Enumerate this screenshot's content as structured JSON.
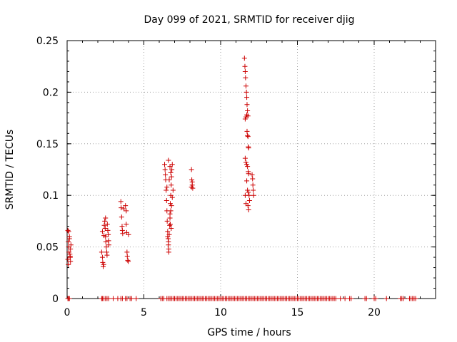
{
  "chart_data": {
    "type": "scatter",
    "title": "Day 099 of 2021, SRMTID for receiver djig",
    "xlabel": "GPS time / hours",
    "ylabel": "SRMTID / TECUs",
    "xlim": [
      0,
      24
    ],
    "ylim": [
      0,
      0.25
    ],
    "xticks": [
      0,
      5,
      10,
      15,
      20
    ],
    "yticks": [
      0,
      0.05,
      0.1,
      0.15,
      0.2,
      0.25
    ],
    "xtick_labels": [
      "0",
      "5",
      "10",
      "15",
      "20"
    ],
    "ytick_labels": [
      "0",
      "0.05",
      "0.1",
      "0.15",
      "0.2",
      "0.25"
    ],
    "grid": true,
    "marker": "+",
    "marker_color": "#cc0000",
    "series": [
      {
        "points": [
          [
            0.05,
            0.066
          ],
          [
            0.08,
            0.055
          ],
          [
            0.1,
            0.05
          ],
          [
            0.12,
            0.045
          ],
          [
            0.05,
            0.038
          ],
          [
            0.08,
            0.033
          ],
          [
            0.15,
            0.06
          ],
          [
            0.18,
            0.043
          ],
          [
            0.2,
            0.041
          ],
          [
            0.22,
            0.048
          ],
          [
            0.25,
            0.052
          ],
          [
            0.1,
            0.065
          ],
          [
            0.15,
            0.058
          ],
          [
            0.2,
            0.04
          ],
          [
            0.22,
            0.036
          ],
          [
            2.25,
            0.045
          ],
          [
            2.3,
            0.04
          ],
          [
            2.32,
            0.035
          ],
          [
            2.35,
            0.031
          ],
          [
            2.38,
            0.033
          ],
          [
            2.4,
            0.061
          ],
          [
            2.42,
            0.071
          ],
          [
            2.45,
            0.075
          ],
          [
            2.48,
            0.068
          ],
          [
            2.5,
            0.06
          ],
          [
            2.52,
            0.055
          ],
          [
            2.55,
            0.05
          ],
          [
            2.58,
            0.045
          ],
          [
            2.6,
            0.042
          ],
          [
            2.62,
            0.072
          ],
          [
            2.65,
            0.066
          ],
          [
            2.68,
            0.062
          ],
          [
            2.7,
            0.056
          ],
          [
            2.72,
            0.052
          ],
          [
            2.3,
            0.065
          ],
          [
            2.5,
            0.078
          ],
          [
            3.5,
            0.094
          ],
          [
            3.52,
            0.088
          ],
          [
            3.55,
            0.079
          ],
          [
            3.58,
            0.07
          ],
          [
            3.6,
            0.066
          ],
          [
            3.62,
            0.063
          ],
          [
            3.7,
            0.087
          ],
          [
            3.8,
            0.09
          ],
          [
            3.85,
            0.072
          ],
          [
            3.88,
            0.064
          ],
          [
            3.9,
            0.045
          ],
          [
            3.92,
            0.041
          ],
          [
            3.95,
            0.037
          ],
          [
            3.98,
            0.036
          ],
          [
            4.0,
            0.062
          ],
          [
            3.85,
            0.085
          ],
          [
            6.35,
            0.13
          ],
          [
            6.38,
            0.125
          ],
          [
            6.4,
            0.12
          ],
          [
            6.42,
            0.115
          ],
          [
            6.45,
            0.105
          ],
          [
            6.48,
            0.095
          ],
          [
            6.5,
            0.085
          ],
          [
            6.52,
            0.075
          ],
          [
            6.55,
            0.065
          ],
          [
            6.58,
            0.058
          ],
          [
            6.6,
            0.052
          ],
          [
            6.62,
            0.048
          ],
          [
            6.65,
            0.062
          ],
          [
            6.68,
            0.071
          ],
          [
            6.7,
            0.082
          ],
          [
            6.72,
            0.092
          ],
          [
            6.75,
            0.1
          ],
          [
            6.78,
            0.11
          ],
          [
            6.8,
            0.118
          ],
          [
            6.82,
            0.125
          ],
          [
            6.85,
            0.13
          ],
          [
            6.6,
            0.134
          ],
          [
            6.7,
            0.128
          ],
          [
            6.75,
            0.122
          ],
          [
            6.65,
            0.115
          ],
          [
            6.5,
            0.108
          ],
          [
            6.55,
            0.06
          ],
          [
            6.6,
            0.055
          ],
          [
            6.62,
            0.045
          ],
          [
            6.7,
            0.078
          ],
          [
            6.75,
            0.085
          ],
          [
            6.8,
            0.09
          ],
          [
            6.85,
            0.098
          ],
          [
            6.9,
            0.105
          ],
          [
            6.78,
            0.068
          ],
          [
            6.72,
            0.072
          ],
          [
            8.1,
            0.125
          ],
          [
            8.12,
            0.115
          ],
          [
            8.15,
            0.11
          ],
          [
            8.18,
            0.107
          ],
          [
            8.1,
            0.108
          ],
          [
            8.15,
            0.113
          ],
          [
            11.55,
            0.233
          ],
          [
            11.58,
            0.225
          ],
          [
            11.6,
            0.22
          ],
          [
            11.62,
            0.214
          ],
          [
            11.65,
            0.206
          ],
          [
            11.68,
            0.2
          ],
          [
            11.7,
            0.195
          ],
          [
            11.72,
            0.188
          ],
          [
            11.75,
            0.182
          ],
          [
            11.78,
            0.177
          ],
          [
            11.6,
            0.174
          ],
          [
            11.65,
            0.176
          ],
          [
            11.7,
            0.178
          ],
          [
            11.72,
            0.162
          ],
          [
            11.75,
            0.158
          ],
          [
            11.78,
            0.157
          ],
          [
            11.8,
            0.147
          ],
          [
            11.82,
            0.146
          ],
          [
            11.6,
            0.136
          ],
          [
            11.65,
            0.132
          ],
          [
            11.7,
            0.13
          ],
          [
            11.75,
            0.128
          ],
          [
            11.8,
            0.123
          ],
          [
            11.82,
            0.121
          ],
          [
            11.7,
            0.114
          ],
          [
            11.75,
            0.105
          ],
          [
            11.8,
            0.103
          ],
          [
            11.85,
            0.1
          ],
          [
            11.88,
            0.095
          ],
          [
            11.78,
            0.09
          ],
          [
            11.82,
            0.086
          ],
          [
            12.05,
            0.12
          ],
          [
            12.08,
            0.116
          ],
          [
            12.1,
            0.11
          ],
          [
            12.12,
            0.105
          ],
          [
            12.15,
            0.1
          ],
          [
            11.6,
            0.1
          ],
          [
            11.65,
            0.092
          ]
        ]
      }
    ],
    "zero_points_x": [
      0.05,
      0.1,
      0.15,
      2.25,
      2.3,
      2.4,
      2.5,
      2.6,
      2.7,
      3.0,
      3.3,
      3.5,
      3.6,
      3.8,
      3.9,
      4.1,
      4.2,
      4.5,
      6.1,
      6.2,
      6.3,
      6.5,
      6.6,
      6.7,
      6.8,
      6.9,
      7.0,
      7.1,
      7.2,
      7.3,
      7.4,
      7.5,
      7.6,
      7.7,
      7.8,
      7.9,
      8.0,
      8.1,
      8.2,
      8.3,
      8.4,
      8.5,
      8.6,
      8.7,
      8.8,
      8.9,
      9.0,
      9.1,
      9.2,
      9.3,
      9.4,
      9.5,
      9.6,
      9.7,
      9.8,
      9.9,
      10.0,
      10.1,
      10.2,
      10.3,
      10.4,
      10.5,
      10.6,
      10.7,
      10.8,
      10.9,
      11.0,
      11.1,
      11.2,
      11.3,
      11.4,
      11.5,
      11.6,
      11.7,
      11.8,
      11.9,
      12.0,
      12.1,
      12.2,
      12.3,
      12.4,
      12.5,
      12.6,
      12.7,
      12.8,
      12.9,
      13.0,
      13.1,
      13.2,
      13.3,
      13.4,
      13.5,
      13.6,
      13.7,
      13.8,
      13.9,
      14.0,
      14.1,
      14.2,
      14.3,
      14.4,
      14.5,
      14.6,
      14.7,
      14.8,
      14.9,
      15.0,
      15.1,
      15.2,
      15.3,
      15.4,
      15.5,
      15.6,
      15.7,
      15.8,
      15.9,
      16.0,
      16.1,
      16.2,
      16.3,
      16.4,
      16.5,
      16.6,
      16.7,
      16.8,
      16.9,
      17.0,
      17.1,
      17.2,
      17.3,
      17.4,
      17.5,
      17.8,
      18.1,
      18.4,
      18.5,
      19.4,
      19.5,
      20.0,
      20.1,
      20.8,
      21.7,
      21.8,
      21.9,
      22.3,
      22.4,
      22.5,
      22.6,
      22.7
    ]
  }
}
